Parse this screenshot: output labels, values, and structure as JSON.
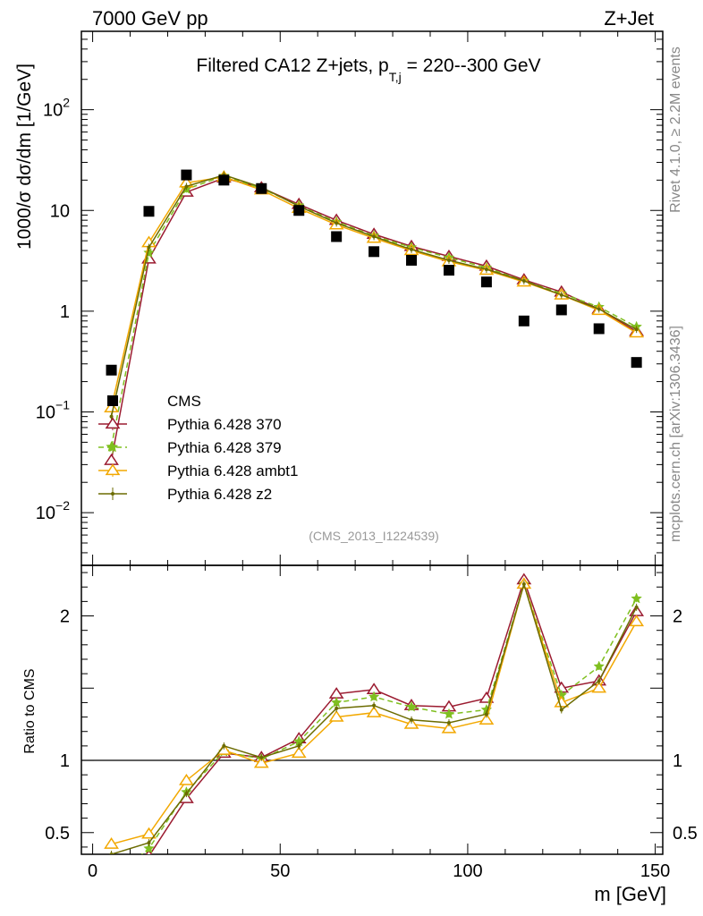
{
  "header": {
    "left": "7000 GeV pp",
    "right": "Z+Jet"
  },
  "side_labels": {
    "top": "Rivet 4.1.0, ≥ 2.2M events",
    "bottom": "mcplots.cern.ch [arXiv:1306.3436]"
  },
  "analysis_id": "(CMS_2013_I1224539)",
  "colors": {
    "data": "#000000",
    "p370": "#9b1b30",
    "p379": "#7fbf1f",
    "ambt1": "#f2a800",
    "z2": "#6b6b00",
    "grid": "#000000"
  },
  "chart_data": [
    {
      "type": "scatter",
      "title_main": "Filtered CA12 Z+jets, p",
      "title_sub": "T,j",
      "title_tail": " = 220--300 GeV",
      "ylabel": "1000/σ  dσ/dm [1/GeV]",
      "yscale": "log",
      "ylim": [
        0.003,
        600
      ],
      "xlim": [
        -3,
        152
      ],
      "yticks": [
        {
          "value": 0.01,
          "base": "10",
          "exp": "−2"
        },
        {
          "value": 0.1,
          "base": "10",
          "exp": "−1"
        },
        {
          "value": 1,
          "base": "1",
          "exp": ""
        },
        {
          "value": 10,
          "base": "10",
          "exp": ""
        },
        {
          "value": 100,
          "base": "10",
          "exp": "2"
        }
      ],
      "x": [
        5,
        15,
        25,
        35,
        45,
        55,
        65,
        75,
        85,
        95,
        105,
        115,
        125,
        135,
        145
      ],
      "series": [
        {
          "name": "CMS",
          "key": "data",
          "style": "square",
          "values": [
            0.26,
            9.8,
            22.5,
            20.0,
            16.5,
            10.0,
            5.5,
            3.9,
            3.2,
            2.55,
            1.95,
            0.8,
            1.03,
            0.67,
            0.31
          ]
        },
        {
          "name": "Pythia 6.428 370",
          "key": "p370",
          "style": "triangle-open",
          "values": [
            0.033,
            3.3,
            15.2,
            21.0,
            16.8,
            11.5,
            8.0,
            5.8,
            4.4,
            3.5,
            2.8,
            2.05,
            1.55,
            1.05,
            0.63
          ]
        },
        {
          "name": "Pythia 6.428 379",
          "key": "p379",
          "style": "star-dashed",
          "values": [
            0.045,
            3.8,
            16.3,
            22.0,
            16.6,
            11.2,
            7.7,
            5.6,
            4.3,
            3.4,
            2.7,
            2.0,
            1.5,
            1.1,
            0.7
          ]
        },
        {
          "name": "Pythia 6.428 ambt1",
          "key": "ambt1",
          "style": "triangle-open",
          "values": [
            0.11,
            4.8,
            18.8,
            21.5,
            16.0,
            10.5,
            7.2,
            5.3,
            4.0,
            3.1,
            2.55,
            1.95,
            1.45,
            1.02,
            0.61
          ]
        },
        {
          "name": "Pythia 6.428 z2",
          "key": "z2",
          "style": "dot",
          "values": [
            0.09,
            4.3,
            17.3,
            22.5,
            17.0,
            11.0,
            7.5,
            5.5,
            4.1,
            3.2,
            2.6,
            2.0,
            1.45,
            1.05,
            0.66
          ]
        }
      ]
    },
    {
      "type": "line",
      "ylabel": "Ratio to CMS",
      "yscale": "linear",
      "ylim": [
        0.35,
        2.35
      ],
      "xlim": [
        -3,
        152
      ],
      "xlabel": "m [GeV]",
      "xticks": [
        0,
        50,
        100,
        150
      ],
      "yticks": [
        0.5,
        1,
        2
      ],
      "reference": 1,
      "x": [
        5,
        15,
        25,
        35,
        45,
        55,
        65,
        75,
        85,
        95,
        105,
        115,
        125,
        135,
        145
      ],
      "series": [
        {
          "name": "Pythia 6.428 370",
          "key": "p370",
          "style": "triangle-open",
          "values": [
            0.127,
            0.337,
            0.736,
            1.05,
            1.02,
            1.15,
            1.46,
            1.49,
            1.38,
            1.37,
            1.43,
            2.25,
            1.5,
            1.55,
            2.03
          ]
        },
        {
          "name": "Pythia 6.428 379",
          "key": "p379",
          "style": "star-dashed",
          "values": [
            0.17,
            0.39,
            0.78,
            1.06,
            1.01,
            1.13,
            1.4,
            1.44,
            1.37,
            1.32,
            1.35,
            2.22,
            1.45,
            1.65,
            2.12
          ]
        },
        {
          "name": "Pythia 6.428 ambt1",
          "key": "ambt1",
          "style": "triangle-open",
          "values": [
            0.42,
            0.49,
            0.86,
            1.07,
            0.98,
            1.05,
            1.3,
            1.33,
            1.25,
            1.22,
            1.28,
            2.22,
            1.4,
            1.5,
            1.96
          ]
        },
        {
          "name": "Pythia 6.428 z2",
          "key": "z2",
          "style": "dot",
          "values": [
            0.35,
            0.43,
            0.77,
            1.1,
            1.02,
            1.1,
            1.36,
            1.38,
            1.28,
            1.26,
            1.32,
            2.22,
            1.35,
            1.55,
            2.06
          ]
        }
      ]
    }
  ]
}
